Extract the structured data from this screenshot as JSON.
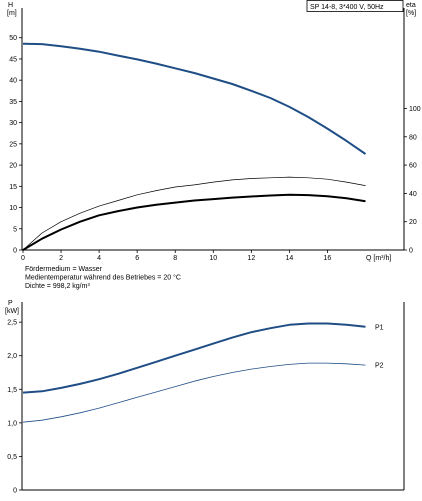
{
  "chart_data": [
    {
      "type": "line",
      "title": "SP 14-8, 3*400 V, 50Hz",
      "xlabel": "Q [m³/h]",
      "ylabel_left_symbol": "H",
      "ylabel_left_unit": "[m]",
      "ylabel_right_symbol": "eta",
      "ylabel_right_unit": "[%]",
      "xlim": [
        0,
        18
      ],
      "xticks": [
        0,
        2,
        4,
        6,
        8,
        10,
        12,
        14,
        16
      ],
      "ylim_left": [
        0,
        57
      ],
      "yticks_left": [
        0,
        5,
        10,
        15,
        20,
        25,
        30,
        35,
        40,
        45,
        50
      ],
      "ylim_right": [
        0,
        171
      ],
      "yticks_right": [
        0,
        20,
        40,
        60,
        80,
        100
      ],
      "grid": false,
      "series": [
        {
          "axis": "left",
          "style": "thick",
          "x": [
            0,
            1,
            2,
            3,
            4,
            5,
            6,
            7,
            8,
            9,
            10,
            11,
            12,
            13,
            14,
            15,
            16,
            17,
            18
          ],
          "values": [
            48.6,
            48.5,
            48.0,
            47.4,
            46.7,
            45.8,
            44.9,
            43.9,
            42.8,
            41.7,
            40.4,
            39.1,
            37.5,
            35.8,
            33.7,
            31.3,
            28.6,
            25.7,
            22.6
          ]
        },
        {
          "axis": "right",
          "style": "thin",
          "x": [
            0,
            1,
            2,
            3,
            4,
            5,
            6,
            7,
            8,
            9,
            10,
            11,
            12,
            13,
            14,
            15,
            16,
            17,
            18
          ],
          "values": [
            0,
            12,
            20,
            26,
            31,
            35,
            39,
            42,
            44.5,
            46,
            48,
            49.5,
            50.5,
            51,
            51.5,
            51,
            50,
            48,
            45.5
          ]
        },
        {
          "axis": "right",
          "style": "thick",
          "x": [
            0,
            1,
            2,
            3,
            4,
            5,
            6,
            7,
            8,
            9,
            10,
            11,
            12,
            13,
            14,
            15,
            16,
            17,
            18
          ],
          "values": [
            0,
            8,
            14.5,
            20,
            24.5,
            27.5,
            30,
            32,
            33.5,
            35,
            36,
            37,
            37.8,
            38.5,
            39,
            38.8,
            38,
            36.5,
            34.5
          ]
        }
      ],
      "notes": [
        "Fördermedium = Wasser",
        "Medientemperatur während des Betriebes = 20 °C",
        "Dichte = 998,2 kg/m³"
      ]
    },
    {
      "type": "line",
      "ylabel_symbol": "P",
      "ylabel_unit": "[kW]",
      "xlim": [
        0,
        18
      ],
      "ylim": [
        0,
        2.8
      ],
      "yticks": [
        0,
        0.5,
        1.0,
        1.5,
        2.0,
        2.5
      ],
      "ytick_labels": [
        "0",
        "0,5",
        "1,0",
        "1,5",
        "2,0",
        "2,5"
      ],
      "grid": false,
      "series": [
        {
          "name": "P1",
          "style": "thick",
          "x": [
            0,
            1,
            2,
            3,
            4,
            5,
            6,
            7,
            8,
            9,
            10,
            11,
            12,
            13,
            14,
            15,
            16,
            17,
            18
          ],
          "values": [
            1.45,
            1.47,
            1.52,
            1.58,
            1.65,
            1.73,
            1.82,
            1.91,
            2.0,
            2.09,
            2.18,
            2.27,
            2.35,
            2.41,
            2.46,
            2.48,
            2.48,
            2.46,
            2.43
          ]
        },
        {
          "name": "P2",
          "style": "thin",
          "x": [
            0,
            1,
            2,
            3,
            4,
            5,
            6,
            7,
            8,
            9,
            10,
            11,
            12,
            13,
            14,
            15,
            16,
            17,
            18
          ],
          "values": [
            1.01,
            1.04,
            1.09,
            1.15,
            1.22,
            1.3,
            1.38,
            1.46,
            1.54,
            1.62,
            1.69,
            1.75,
            1.8,
            1.84,
            1.87,
            1.89,
            1.89,
            1.88,
            1.86
          ]
        }
      ]
    }
  ]
}
